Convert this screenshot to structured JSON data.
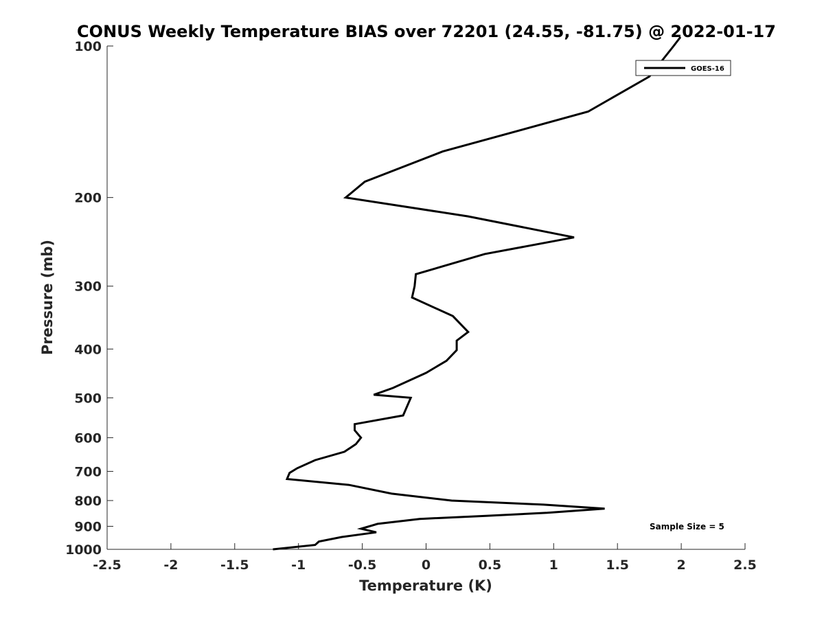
{
  "chart_data": {
    "type": "line",
    "title": "CONUS Weekly Temperature BIAS over 72201 (24.55, -81.75) @ 2022-01-17",
    "xlabel": "Temperature (K)",
    "ylabel": "Pressure (mb)",
    "xlim": [
      -2.5,
      2.5
    ],
    "ylim": [
      100,
      1000
    ],
    "y_scale": "log",
    "y_reversed": true,
    "grid": false,
    "legend_position": "top-right",
    "x_ticks": [
      "-2.5",
      "-2",
      "-1.5",
      "-1",
      "-0.5",
      "0",
      "0.5",
      "1",
      "1.5",
      "2",
      "2.5"
    ],
    "y_ticks": [
      "100",
      "200",
      "300",
      "400",
      "500",
      "600",
      "700",
      "800",
      "900",
      "1000"
    ],
    "series": [
      {
        "name": "GOES-16",
        "color": "#000000",
        "points": [
          {
            "x": 1.94,
            "y": 100
          },
          {
            "x": 1.75,
            "y": 115
          },
          {
            "x": 1.27,
            "y": 135
          },
          {
            "x": 0.13,
            "y": 162
          },
          {
            "x": -0.48,
            "y": 186
          },
          {
            "x": -0.63,
            "y": 200
          },
          {
            "x": 0.33,
            "y": 218
          },
          {
            "x": 1.16,
            "y": 240
          },
          {
            "x": 0.46,
            "y": 259
          },
          {
            "x": -0.08,
            "y": 284
          },
          {
            "x": -0.09,
            "y": 300
          },
          {
            "x": -0.11,
            "y": 316
          },
          {
            "x": 0.21,
            "y": 344
          },
          {
            "x": 0.33,
            "y": 370
          },
          {
            "x": 0.24,
            "y": 385
          },
          {
            "x": 0.24,
            "y": 402
          },
          {
            "x": 0.16,
            "y": 422
          },
          {
            "x": 0.0,
            "y": 446
          },
          {
            "x": -0.26,
            "y": 478
          },
          {
            "x": -0.41,
            "y": 493
          },
          {
            "x": -0.12,
            "y": 500
          },
          {
            "x": -0.18,
            "y": 542
          },
          {
            "x": -0.56,
            "y": 564
          },
          {
            "x": -0.56,
            "y": 580
          },
          {
            "x": -0.51,
            "y": 600
          },
          {
            "x": -0.55,
            "y": 618
          },
          {
            "x": -0.64,
            "y": 640
          },
          {
            "x": -0.87,
            "y": 665
          },
          {
            "x": -1.01,
            "y": 690
          },
          {
            "x": -1.07,
            "y": 705
          },
          {
            "x": -1.09,
            "y": 725
          },
          {
            "x": -0.6,
            "y": 745
          },
          {
            "x": -0.27,
            "y": 775
          },
          {
            "x": 0.2,
            "y": 800
          },
          {
            "x": 0.92,
            "y": 815
          },
          {
            "x": 1.4,
            "y": 830
          },
          {
            "x": 0.95,
            "y": 846
          },
          {
            "x": 0.47,
            "y": 858
          },
          {
            "x": -0.05,
            "y": 870
          },
          {
            "x": -0.38,
            "y": 890
          },
          {
            "x": -0.51,
            "y": 910
          },
          {
            "x": -0.39,
            "y": 925
          },
          {
            "x": -0.66,
            "y": 945
          },
          {
            "x": -0.84,
            "y": 965
          },
          {
            "x": -0.87,
            "y": 980
          },
          {
            "x": -1.2,
            "y": 1000
          }
        ]
      }
    ],
    "annotations": [
      "Sample Size = 5"
    ]
  }
}
